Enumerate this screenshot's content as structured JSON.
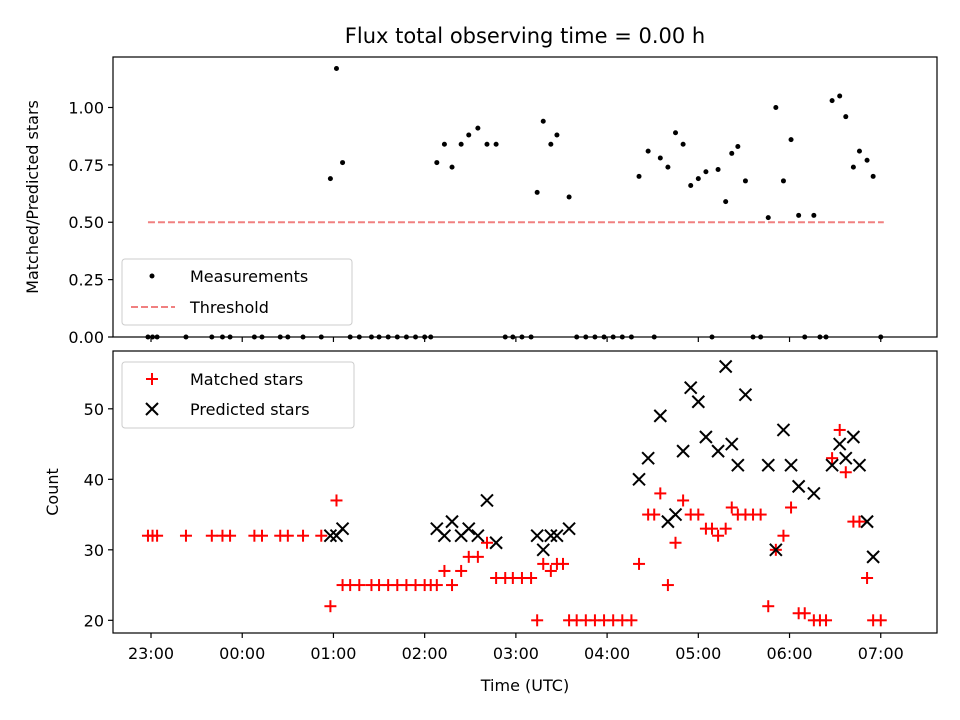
{
  "chart_data": [
    {
      "type": "scatter",
      "title": "Flux total observing time = 0.00 h",
      "xlabel": "",
      "ylabel": "Matched/Predicted stars",
      "ylim": [
        0,
        1.22
      ],
      "xlim": [
        "22:35",
        "07:37"
      ],
      "yticks": [
        "0.00",
        "0.25",
        "0.50",
        "0.75",
        "1.00"
      ],
      "grid": false,
      "legend_position": "lower-left",
      "series": [
        {
          "name": "Measurements",
          "marker": "dot",
          "color": "#000000",
          "points": [
            [
              "22:58",
              0
            ],
            [
              "23:01",
              0
            ],
            [
              "23:04",
              0
            ],
            [
              "23:23",
              0
            ],
            [
              "23:40",
              0
            ],
            [
              "23:47",
              0
            ],
            [
              "23:52",
              0
            ],
            [
              "00:08",
              0
            ],
            [
              "00:13",
              0
            ],
            [
              "00:25",
              0
            ],
            [
              "00:30",
              0
            ],
            [
              "00:40",
              0
            ],
            [
              "00:52",
              0
            ],
            [
              "00:58",
              0.69
            ],
            [
              "01:02",
              1.17
            ],
            [
              "01:06",
              0.76
            ],
            [
              "01:11",
              0
            ],
            [
              "01:17",
              0
            ],
            [
              "01:25",
              0
            ],
            [
              "01:30",
              0
            ],
            [
              "01:36",
              0
            ],
            [
              "01:42",
              0
            ],
            [
              "01:48",
              0
            ],
            [
              "01:54",
              0
            ],
            [
              "02:00",
              0
            ],
            [
              "02:04",
              0
            ],
            [
              "02:08",
              0.76
            ],
            [
              "02:13",
              0.84
            ],
            [
              "02:18",
              0.74
            ],
            [
              "02:24",
              0.84
            ],
            [
              "02:29",
              0.88
            ],
            [
              "02:35",
              0.91
            ],
            [
              "02:41",
              0.84
            ],
            [
              "02:47",
              0.84
            ],
            [
              "02:53",
              0
            ],
            [
              "02:58",
              0
            ],
            [
              "03:04",
              0
            ],
            [
              "03:10",
              0
            ],
            [
              "03:14",
              0.63
            ],
            [
              "03:18",
              0.94
            ],
            [
              "03:23",
              0.84
            ],
            [
              "03:27",
              0.88
            ],
            [
              "03:35",
              0.61
            ],
            [
              "03:40",
              0
            ],
            [
              "03:46",
              0
            ],
            [
              "03:52",
              0
            ],
            [
              "03:58",
              0
            ],
            [
              "04:04",
              0
            ],
            [
              "04:10",
              0
            ],
            [
              "04:16",
              0
            ],
            [
              "04:21",
              0.7
            ],
            [
              "04:27",
              0.81
            ],
            [
              "04:31",
              0
            ],
            [
              "04:35",
              0.78
            ],
            [
              "04:40",
              0.74
            ],
            [
              "04:45",
              0.89
            ],
            [
              "04:50",
              0.84
            ],
            [
              "04:55",
              0.66
            ],
            [
              "05:00",
              0.69
            ],
            [
              "05:05",
              0.72
            ],
            [
              "05:09",
              0
            ],
            [
              "05:13",
              0.73
            ],
            [
              "05:18",
              0.59
            ],
            [
              "05:22",
              0.8
            ],
            [
              "05:26",
              0.83
            ],
            [
              "05:31",
              0.68
            ],
            [
              "05:36",
              0
            ],
            [
              "05:41",
              0
            ],
            [
              "05:46",
              0.52
            ],
            [
              "05:51",
              1.0
            ],
            [
              "05:56",
              0.68
            ],
            [
              "06:01",
              0.86
            ],
            [
              "06:06",
              0.53
            ],
            [
              "06:10",
              0
            ],
            [
              "06:16",
              0.53
            ],
            [
              "06:20",
              0
            ],
            [
              "06:24",
              0
            ],
            [
              "06:28",
              1.03
            ],
            [
              "06:33",
              1.05
            ],
            [
              "06:37",
              0.96
            ],
            [
              "06:42",
              0.74
            ],
            [
              "06:46",
              0.81
            ],
            [
              "06:51",
              0.77
            ],
            [
              "06:55",
              0.7
            ],
            [
              "07:00",
              0
            ]
          ]
        },
        {
          "name": "Threshold",
          "type": "line",
          "style": "dashed",
          "color": "#f08080",
          "points": [
            [
              "22:58",
              0.5
            ],
            [
              "07:02",
              0.5
            ]
          ]
        }
      ]
    },
    {
      "type": "scatter",
      "title": "",
      "xlabel": "Time (UTC)",
      "ylabel": "Count",
      "ylim": [
        18.2,
        58.2
      ],
      "xlim": [
        "22:35",
        "07:37"
      ],
      "yticks": [
        "20",
        "30",
        "40",
        "50"
      ],
      "xticks": [
        "23:00",
        "00:00",
        "01:00",
        "02:00",
        "03:00",
        "04:00",
        "05:00",
        "06:00",
        "07:00"
      ],
      "grid": false,
      "legend_position": "top-left",
      "series": [
        {
          "name": "Matched stars",
          "marker": "plus",
          "color": "#ff0000",
          "points": [
            [
              "22:58",
              32
            ],
            [
              "23:01",
              32
            ],
            [
              "23:04",
              32
            ],
            [
              "23:23",
              32
            ],
            [
              "23:40",
              32
            ],
            [
              "23:47",
              32
            ],
            [
              "23:52",
              32
            ],
            [
              "00:08",
              32
            ],
            [
              "00:13",
              32
            ],
            [
              "00:25",
              32
            ],
            [
              "00:30",
              32
            ],
            [
              "00:40",
              32
            ],
            [
              "00:52",
              32
            ],
            [
              "00:58",
              22
            ],
            [
              "01:02",
              37
            ],
            [
              "01:06",
              25
            ],
            [
              "01:11",
              25
            ],
            [
              "01:17",
              25
            ],
            [
              "01:25",
              25
            ],
            [
              "01:30",
              25
            ],
            [
              "01:36",
              25
            ],
            [
              "01:42",
              25
            ],
            [
              "01:48",
              25
            ],
            [
              "01:54",
              25
            ],
            [
              "02:00",
              25
            ],
            [
              "02:04",
              25
            ],
            [
              "02:08",
              25
            ],
            [
              "02:13",
              27
            ],
            [
              "02:18",
              25
            ],
            [
              "02:24",
              27
            ],
            [
              "02:29",
              29
            ],
            [
              "02:35",
              29
            ],
            [
              "02:41",
              31
            ],
            [
              "02:47",
              26
            ],
            [
              "02:53",
              26
            ],
            [
              "02:58",
              26
            ],
            [
              "03:04",
              26
            ],
            [
              "03:10",
              26
            ],
            [
              "03:14",
              20
            ],
            [
              "03:18",
              28
            ],
            [
              "03:23",
              27
            ],
            [
              "03:27",
              28
            ],
            [
              "03:31",
              28
            ],
            [
              "03:35",
              20
            ],
            [
              "03:40",
              20
            ],
            [
              "03:46",
              20
            ],
            [
              "03:52",
              20
            ],
            [
              "03:58",
              20
            ],
            [
              "04:04",
              20
            ],
            [
              "04:10",
              20
            ],
            [
              "04:16",
              20
            ],
            [
              "04:21",
              28
            ],
            [
              "04:27",
              35
            ],
            [
              "04:31",
              35
            ],
            [
              "04:35",
              38
            ],
            [
              "04:40",
              25
            ],
            [
              "04:45",
              31
            ],
            [
              "04:50",
              37
            ],
            [
              "04:55",
              35
            ],
            [
              "05:00",
              35
            ],
            [
              "05:05",
              33
            ],
            [
              "05:09",
              33
            ],
            [
              "05:13",
              32
            ],
            [
              "05:18",
              33
            ],
            [
              "05:22",
              36
            ],
            [
              "05:26",
              35
            ],
            [
              "05:31",
              35
            ],
            [
              "05:36",
              35
            ],
            [
              "05:41",
              35
            ],
            [
              "05:46",
              22
            ],
            [
              "05:51",
              30
            ],
            [
              "05:56",
              32
            ],
            [
              "06:01",
              36
            ],
            [
              "06:06",
              21
            ],
            [
              "06:10",
              21
            ],
            [
              "06:16",
              20
            ],
            [
              "06:20",
              20
            ],
            [
              "06:24",
              20
            ],
            [
              "06:28",
              43
            ],
            [
              "06:33",
              47
            ],
            [
              "06:37",
              41
            ],
            [
              "06:42",
              34
            ],
            [
              "06:46",
              34
            ],
            [
              "06:51",
              26
            ],
            [
              "06:55",
              20
            ],
            [
              "07:00",
              20
            ]
          ]
        },
        {
          "name": "Predicted stars",
          "marker": "x",
          "color": "#000000",
          "points": [
            [
              "00:58",
              32
            ],
            [
              "01:02",
              32
            ],
            [
              "01:06",
              33
            ],
            [
              "02:08",
              33
            ],
            [
              "02:13",
              32
            ],
            [
              "02:18",
              34
            ],
            [
              "02:24",
              32
            ],
            [
              "02:29",
              33
            ],
            [
              "02:35",
              32
            ],
            [
              "02:41",
              37
            ],
            [
              "02:47",
              31
            ],
            [
              "03:14",
              32
            ],
            [
              "03:18",
              30
            ],
            [
              "03:23",
              32
            ],
            [
              "03:27",
              32
            ],
            [
              "03:35",
              33
            ],
            [
              "04:21",
              40
            ],
            [
              "04:27",
              43
            ],
            [
              "04:35",
              49
            ],
            [
              "04:40",
              34
            ],
            [
              "04:45",
              35
            ],
            [
              "04:50",
              44
            ],
            [
              "04:55",
              53
            ],
            [
              "05:00",
              51
            ],
            [
              "05:05",
              46
            ],
            [
              "05:13",
              44
            ],
            [
              "05:18",
              56
            ],
            [
              "05:22",
              45
            ],
            [
              "05:26",
              42
            ],
            [
              "05:31",
              52
            ],
            [
              "05:46",
              42
            ],
            [
              "05:51",
              30
            ],
            [
              "05:56",
              47
            ],
            [
              "06:01",
              42
            ],
            [
              "06:06",
              39
            ],
            [
              "06:16",
              38
            ],
            [
              "06:28",
              42
            ],
            [
              "06:33",
              45
            ],
            [
              "06:37",
              43
            ],
            [
              "06:42",
              46
            ],
            [
              "06:46",
              42
            ],
            [
              "06:51",
              34
            ],
            [
              "06:55",
              29
            ]
          ]
        }
      ]
    }
  ]
}
